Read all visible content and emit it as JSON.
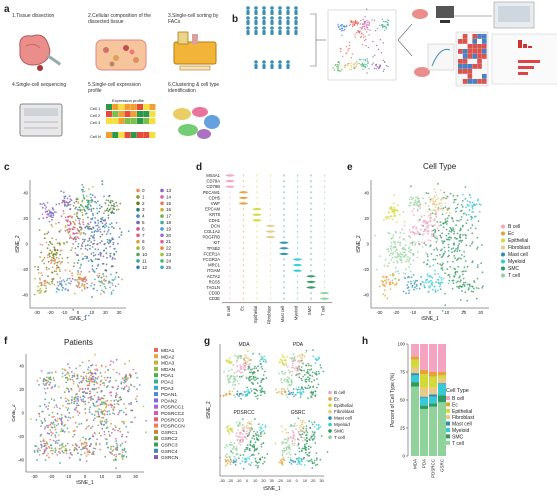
{
  "panels": {
    "a": {
      "label": "a",
      "steps": [
        "1.Tissue dissection",
        "2.Cellular composition of the dissected tissue",
        "3.Single-cell sorting by FACs",
        "4.Single-cell sequencing",
        "5.Single-cell expression profile",
        "6.Clustering & cell type identification"
      ],
      "expression_profile_title": "Expression profile",
      "cells": [
        "Cell 1",
        "Cell 2",
        "Cell 3",
        "Cell N"
      ]
    },
    "b": {
      "label": "b"
    },
    "c": {
      "label": "c",
      "xlabel": "tSNE_1",
      "ylabel": "tSNE_2",
      "x_ticks": [
        "-30",
        "-20",
        "-10",
        "0",
        "10",
        "20",
        "30"
      ],
      "y_ticks": [
        "40",
        "20",
        "0",
        "-20",
        "-40"
      ],
      "clusters": [
        "0",
        "1",
        "2",
        "3",
        "4",
        "5",
        "6",
        "7",
        "8",
        "9",
        "10",
        "11",
        "12",
        "13",
        "14",
        "15",
        "16",
        "17",
        "18",
        "19",
        "20",
        "21",
        "22",
        "23",
        "24",
        "25"
      ]
    },
    "d": {
      "label": "d",
      "genes": [
        "MS4A1",
        "CD79A",
        "CD79B",
        "PECAM1",
        "CDH5",
        "VWF",
        "EPCAM",
        "KRT8",
        "CDH1",
        "DCN",
        "COL1A2",
        "PDGFRB",
        "KIT",
        "TPSB2",
        "FCER1A",
        "FCGR2A",
        "MRC1",
        "ITGAM",
        "ACTA2",
        "RGS5",
        "TAGLN",
        "CD3D",
        "CD3E"
      ],
      "cell_types": [
        "B cell",
        "Ec",
        "Epithelial",
        "Fibroblast",
        "Mast cell",
        "Myeloid",
        "SMC",
        "T cell"
      ]
    },
    "e": {
      "label": "e",
      "title": "Cell Type",
      "xlabel": "tSNE_1",
      "ylabel": "tSNE_2",
      "x_ticks": [
        "-30",
        "-20",
        "-10",
        "0",
        "10",
        "20",
        "30"
      ],
      "y_ticks": [
        "40",
        "20",
        "0",
        "-20",
        "-40"
      ],
      "legend": [
        "B cell",
        "Ec",
        "Epithelial",
        "Fibroblast",
        "Mast cell",
        "Myeloid",
        "SMC",
        "T cell"
      ]
    },
    "f": {
      "label": "f",
      "title": "Patients",
      "xlabel": "tSNE_1",
      "ylabel": "tSNE_2",
      "x_ticks": [
        "-30",
        "-20",
        "-10",
        "0",
        "10",
        "20",
        "30"
      ],
      "y_ticks": [
        "40",
        "20",
        "0",
        "-20",
        "-40"
      ],
      "legend": [
        "MDA1",
        "MDA2",
        "MDA3",
        "MDAN",
        "PDA1",
        "PDA2",
        "PDA3",
        "PDAN1",
        "PDAN2",
        "PDSRCC1",
        "PDSRCC2",
        "PDSRCC3",
        "PDSRCCN",
        "GSRC1",
        "GSRC2",
        "GSRC3",
        "GSRC4",
        "GSRCN"
      ]
    },
    "g": {
      "label": "g",
      "subtitles": [
        "MDA",
        "PDA",
        "PDSRCC",
        "GSRC"
      ],
      "xlabel": "tSNE_1",
      "ylabel": "tSNE_2",
      "x_ticks": [
        "-30",
        "-20",
        "-10",
        "0",
        "10",
        "20",
        "30",
        "-20",
        "-10",
        "0",
        "10",
        "20",
        "30"
      ],
      "legend": [
        "B cell",
        "Ec",
        "Epithelial",
        "Fibroblast",
        "Mast cell",
        "Myeloid",
        "SMC",
        "T cell"
      ]
    },
    "h": {
      "label": "h",
      "ylabel": "Percent of Cell Type (%)",
      "legend_title": "Cell Type",
      "legend": [
        "B cell",
        "Ec",
        "Epithelial",
        "Fibroblast",
        "Mast cell",
        "Myeloid",
        "SMC",
        "T cell"
      ],
      "y_ticks": [
        "0",
        "25",
        "50",
        "75",
        "100"
      ]
    }
  },
  "colors": {
    "B cell": "#f4a3c0",
    "Ec": "#e6a23a",
    "Epithelial": "#d4d93a",
    "Fibroblast": "#e8c98a",
    "Mast cell": "#2a8fb0",
    "Myeloid": "#37c9d6",
    "SMC": "#2f9a5f",
    "T cell": "#8fd39a"
  },
  "chart_data": {
    "type": "bar",
    "categories": [
      "MDA",
      "PDA",
      "PDSRCC",
      "GSRC"
    ],
    "ylabel": "Percent of Cell Type (%)",
    "ylim": [
      0,
      100
    ],
    "series": [
      {
        "name": "T cell",
        "values": [
          62,
          42,
          44,
          48
        ]
      },
      {
        "name": "SMC",
        "values": [
          4,
          3,
          3,
          6
        ]
      },
      {
        "name": "Myeloid",
        "values": [
          6,
          7,
          6,
          10
        ]
      },
      {
        "name": "Mast cell",
        "values": [
          2,
          1,
          2,
          1
        ]
      },
      {
        "name": "Fibroblast",
        "values": [
          5,
          8,
          6,
          4
        ]
      },
      {
        "name": "Epithelial",
        "values": [
          7,
          12,
          10,
          3
        ]
      },
      {
        "name": "Ec",
        "values": [
          3,
          4,
          4,
          3
        ]
      },
      {
        "name": "B cell",
        "values": [
          11,
          23,
          25,
          25
        ]
      }
    ]
  }
}
